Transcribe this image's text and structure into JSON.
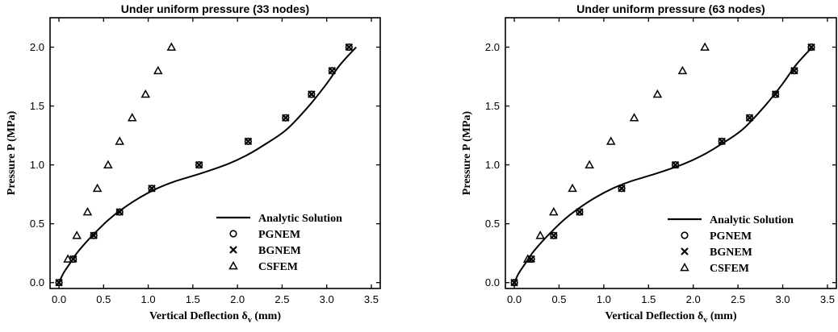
{
  "chart_data": [
    {
      "type": "line",
      "title": "Under uniform pressure (33 nodes)",
      "xlabel": "Vertical Deflection  δ",
      "xlabel_sub": "v",
      "xlabel_unit": " (mm)",
      "ylabel": "Pressure  P (MPa)",
      "xlim": [
        -0.1,
        3.6
      ],
      "ylim": [
        -0.05,
        2.25
      ],
      "xticks": [
        "0.0",
        "0.5",
        "1.0",
        "1.5",
        "2.0",
        "2.5",
        "3.0",
        "3.5"
      ],
      "yticks": [
        "0.0",
        "0.5",
        "1.0",
        "1.5",
        "2.0"
      ],
      "legend_position": "bottom-right",
      "series": [
        {
          "name": "Analytic Solution",
          "marker": "line",
          "x": [
            0,
            0.05,
            0.12,
            0.2,
            0.3,
            0.4,
            0.55,
            0.7,
            0.9,
            1.1,
            1.3,
            1.6,
            1.9,
            2.1,
            2.3,
            2.55,
            2.8,
            3.0,
            3.15,
            3.33
          ],
          "y": [
            0,
            0.08,
            0.16,
            0.25,
            0.34,
            0.42,
            0.53,
            0.62,
            0.72,
            0.8,
            0.86,
            0.93,
            1.01,
            1.08,
            1.17,
            1.3,
            1.5,
            1.69,
            1.85,
            2.0
          ]
        },
        {
          "name": "PGNEM",
          "marker": "circle",
          "x": [
            0,
            0.16,
            0.39,
            0.68,
            1.04,
            1.57,
            2.12,
            2.54,
            2.83,
            3.06,
            3.25
          ],
          "y": [
            0,
            0.2,
            0.4,
            0.6,
            0.8,
            1.0,
            1.2,
            1.4,
            1.6,
            1.8,
            2.0
          ]
        },
        {
          "name": "BGNEM",
          "marker": "x",
          "x": [
            0,
            0.16,
            0.39,
            0.68,
            1.04,
            1.57,
            2.12,
            2.54,
            2.83,
            3.06,
            3.25
          ],
          "y": [
            0,
            0.2,
            0.4,
            0.6,
            0.8,
            1.0,
            1.2,
            1.4,
            1.6,
            1.8,
            2.0
          ]
        },
        {
          "name": "CSFEM",
          "marker": "triangle",
          "x": [
            0.1,
            0.2,
            0.32,
            0.43,
            0.55,
            0.68,
            0.82,
            0.97,
            1.11,
            1.26
          ],
          "y": [
            0.2,
            0.4,
            0.6,
            0.8,
            1.0,
            1.2,
            1.4,
            1.6,
            1.8,
            2.0
          ]
        }
      ]
    },
    {
      "type": "line",
      "title": "Under uniform pressure (63 nodes)",
      "xlabel": "Vertical Deflection  δ",
      "xlabel_sub": "v",
      "xlabel_unit": " (mm)",
      "ylabel": "Pressure  P (MPa)",
      "xlim": [
        -0.1,
        3.6
      ],
      "ylim": [
        -0.05,
        2.25
      ],
      "xticks": [
        "0.0",
        "0.5",
        "1.0",
        "1.5",
        "2.0",
        "2.5",
        "3.0",
        "3.5"
      ],
      "yticks": [
        "0.0",
        "0.5",
        "1.0",
        "1.5",
        "2.0"
      ],
      "legend_position": "bottom-right",
      "series": [
        {
          "name": "Analytic Solution",
          "marker": "line",
          "x": [
            0,
            0.05,
            0.12,
            0.2,
            0.3,
            0.4,
            0.55,
            0.7,
            0.9,
            1.1,
            1.3,
            1.6,
            1.9,
            2.1,
            2.3,
            2.55,
            2.8,
            3.0,
            3.15,
            3.33
          ],
          "y": [
            0,
            0.08,
            0.16,
            0.25,
            0.34,
            0.42,
            0.53,
            0.62,
            0.72,
            0.8,
            0.86,
            0.93,
            1.01,
            1.08,
            1.17,
            1.3,
            1.5,
            1.69,
            1.85,
            2.0
          ]
        },
        {
          "name": "PGNEM",
          "marker": "circle",
          "x": [
            0,
            0.19,
            0.44,
            0.73,
            1.2,
            1.8,
            2.32,
            2.63,
            2.92,
            3.13,
            3.32
          ],
          "y": [
            0,
            0.2,
            0.4,
            0.6,
            0.8,
            1.0,
            1.2,
            1.4,
            1.6,
            1.8,
            2.0
          ]
        },
        {
          "name": "BGNEM",
          "marker": "x",
          "x": [
            0,
            0.19,
            0.44,
            0.73,
            1.2,
            1.8,
            2.32,
            2.63,
            2.92,
            3.13,
            3.32
          ],
          "y": [
            0,
            0.2,
            0.4,
            0.6,
            0.8,
            1.0,
            1.2,
            1.4,
            1.6,
            1.8,
            2.0
          ]
        },
        {
          "name": "CSFEM",
          "marker": "triangle",
          "x": [
            0.15,
            0.29,
            0.44,
            0.65,
            0.84,
            1.08,
            1.34,
            1.6,
            1.88,
            2.13
          ],
          "y": [
            0.2,
            0.4,
            0.6,
            0.8,
            1.0,
            1.2,
            1.4,
            1.6,
            1.8,
            2.0
          ]
        }
      ]
    }
  ]
}
